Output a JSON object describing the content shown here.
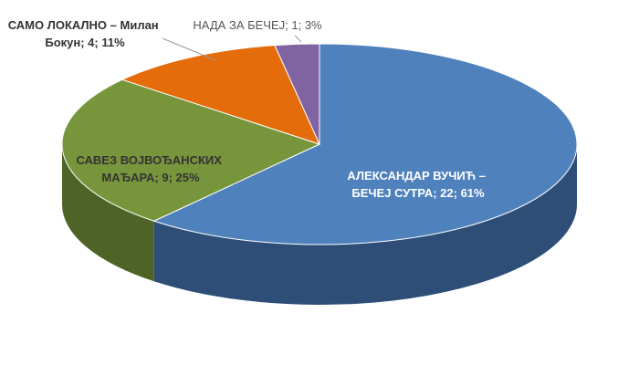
{
  "chart_data": {
    "type": "pie",
    "title": "",
    "series": [
      {
        "slices": [
          {
            "label": "АЛЕКСАНДАР ВУЧИЋ – БЕЧЕЈ СУТРА",
            "value": 22,
            "percent": "61%",
            "color": "#4F81BD",
            "side_color": "#2E4E78"
          },
          {
            "label": "САВЕЗ ВОЈВОЂАНСКИХ МАЂАРА",
            "value": 9,
            "percent": "25%",
            "color": "#77963B",
            "side_color": "#4E6426"
          },
          {
            "label": "САМО ЛОКАЛНО – Милан Бокун",
            "value": 4,
            "percent": "11%",
            "color": "#E46C0A",
            "side_color": "#9C4A06"
          },
          {
            "label": "НАДА ЗА БЕЧЕЈ",
            "value": 1,
            "percent": "3%",
            "color": "#8064A2",
            "side_color": "#554270"
          }
        ]
      }
    ],
    "data_labels": [
      {
        "lines": [
          "АЛЕКСАНДАР ВУЧИЋ –",
          "БЕЧЕЈ СУТРА; 22; 61%"
        ]
      },
      {
        "lines": [
          "САВЕЗ ВОЈВОЂАНСКИХ",
          "МАЂАРА; 9; 25%"
        ]
      },
      {
        "lines": [
          "САМО ЛОКАЛНО – Милан",
          "Бокун; 4; 11%"
        ]
      },
      {
        "lines": [
          "НАДА ЗА БЕЧЕЈ; 1; 3%"
        ]
      }
    ],
    "legend": "none",
    "style": "3d"
  }
}
